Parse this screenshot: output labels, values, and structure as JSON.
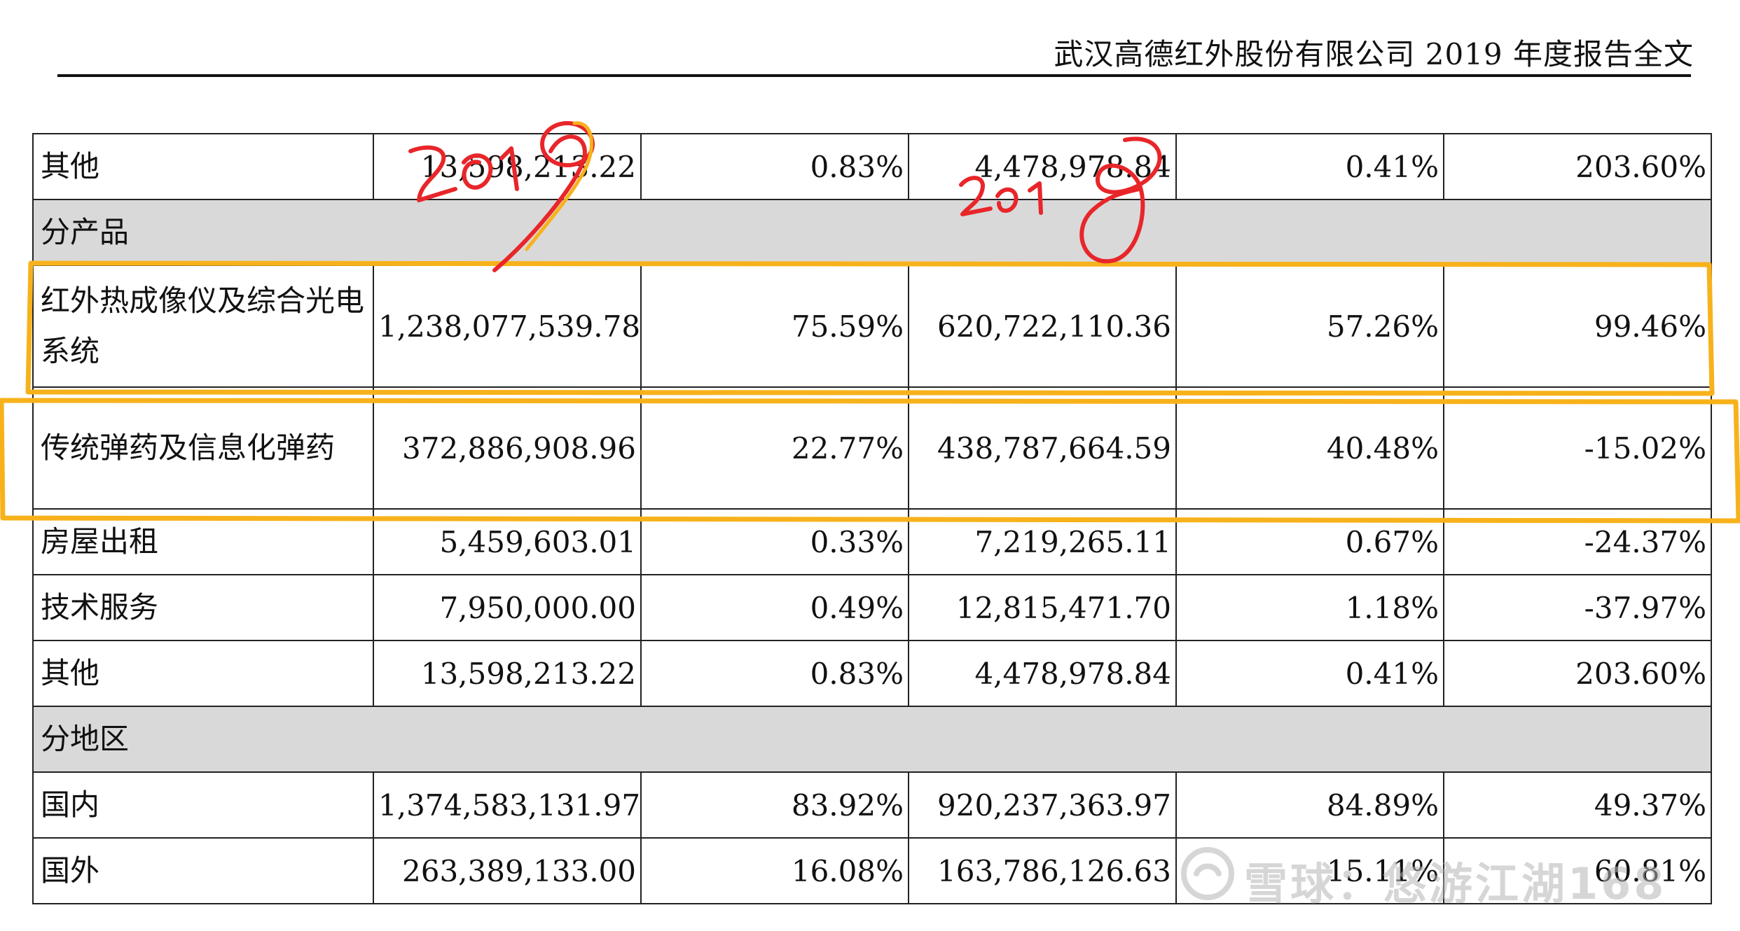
{
  "header": {
    "title": "武汉高德红外股份有限公司 2019 年度报告全文"
  },
  "rows": [
    {
      "type": "data",
      "label": "其他",
      "v1": "13,598,213.22",
      "p1": "0.83%",
      "v2": "4,478,978.84",
      "p2": "0.41%",
      "chg": "203.60%"
    },
    {
      "type": "section",
      "label": "分产品"
    },
    {
      "type": "data",
      "tall": true,
      "label": "红外热成像仪及综合光电系统",
      "v1": "1,238,077,539.78",
      "p1": "75.59%",
      "v2": "620,722,110.36",
      "p2": "57.26%",
      "chg": "99.46%"
    },
    {
      "type": "data",
      "tall": true,
      "label": "传统弹药及信息化弹药",
      "v1": "372,886,908.96",
      "p1": "22.77%",
      "v2": "438,787,664.59",
      "p2": "40.48%",
      "chg": "-15.02%"
    },
    {
      "type": "data",
      "label": "房屋出租",
      "v1": "5,459,603.01",
      "p1": "0.33%",
      "v2": "7,219,265.11",
      "p2": "0.67%",
      "chg": "-24.37%"
    },
    {
      "type": "data",
      "label": "技术服务",
      "v1": "7,950,000.00",
      "p1": "0.49%",
      "v2": "12,815,471.70",
      "p2": "1.18%",
      "chg": "-37.97%"
    },
    {
      "type": "data",
      "label": "其他",
      "v1": "13,598,213.22",
      "p1": "0.83%",
      "v2": "4,478,978.84",
      "p2": "0.41%",
      "chg": "203.60%"
    },
    {
      "type": "section",
      "label": "分地区"
    },
    {
      "type": "data",
      "label": "国内",
      "v1": "1,374,583,131.97",
      "p1": "83.92%",
      "v2": "920,237,363.97",
      "p2": "84.89%",
      "chg": "49.37%"
    },
    {
      "type": "data",
      "label": "国外",
      "v1": "263,389,133.00",
      "p1": "16.08%",
      "v2": "163,786,126.63",
      "p2": "15.11%",
      "chg": "60.81%"
    }
  ],
  "watermark": {
    "text": "雪球：悠游江湖168"
  },
  "annotations": {
    "red": "#e8262a",
    "orange": "#f7b21b"
  }
}
